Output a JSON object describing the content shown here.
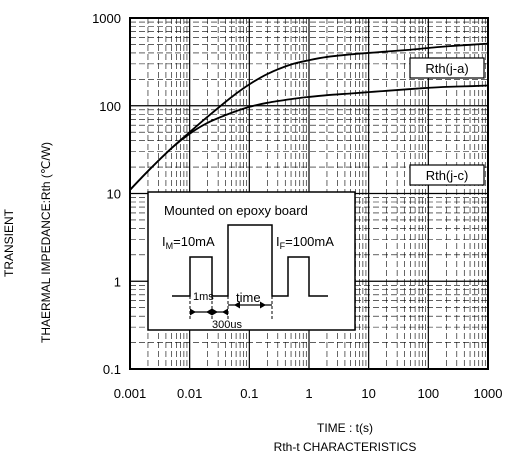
{
  "chart_data": {
    "type": "line",
    "x_scale": "log",
    "y_scale": "log",
    "xlim": [
      0.001,
      1000
    ],
    "ylim": [
      0.1,
      1000
    ],
    "x_ticks": [
      "0.001",
      "0.01",
      "0.1",
      "1",
      "10",
      "100",
      "1000"
    ],
    "y_ticks": [
      "0.1",
      "1",
      "10",
      "100",
      "1000"
    ],
    "xlabel": "TIME : t(s)",
    "ylabel_line1": "TRANSIENT",
    "ylabel_line2": "THAERMAL IMPEDANCE:Rth (℃/W)",
    "caption": "Rth-t CHARACTERISTICS",
    "grid": true,
    "series": [
      {
        "name": "Rth(j-a)",
        "x": [
          0.001,
          0.002,
          0.005,
          0.01,
          0.02,
          0.05,
          0.1,
          0.2,
          0.5,
          1,
          2,
          5,
          10,
          20,
          50,
          100,
          200,
          500,
          1000
        ],
        "y": [
          11,
          18,
          33,
          50,
          75,
          125,
          175,
          230,
          295,
          330,
          360,
          385,
          400,
          415,
          435,
          455,
          475,
          495,
          510
        ]
      },
      {
        "name": "Rth(j-c)",
        "x": [
          0.001,
          0.002,
          0.005,
          0.01,
          0.02,
          0.05,
          0.1,
          0.2,
          0.5,
          1,
          2,
          5,
          10,
          20,
          50,
          100,
          200,
          500,
          1000
        ],
        "y": [
          11,
          18,
          33,
          48,
          64,
          83,
          97,
          108,
          119,
          126,
          132,
          138,
          143,
          148,
          155,
          160,
          164,
          167,
          170
        ]
      }
    ],
    "inset": {
      "title": "Mounted on epoxy board",
      "label_left": "I",
      "label_left_sub": "M",
      "label_left_value": "=10mA",
      "label_right": "I",
      "label_right_sub": "F",
      "label_right_value": "=100mA",
      "label_pulse1": "1ms",
      "label_pulse2": "300us",
      "label_time": "time"
    }
  }
}
